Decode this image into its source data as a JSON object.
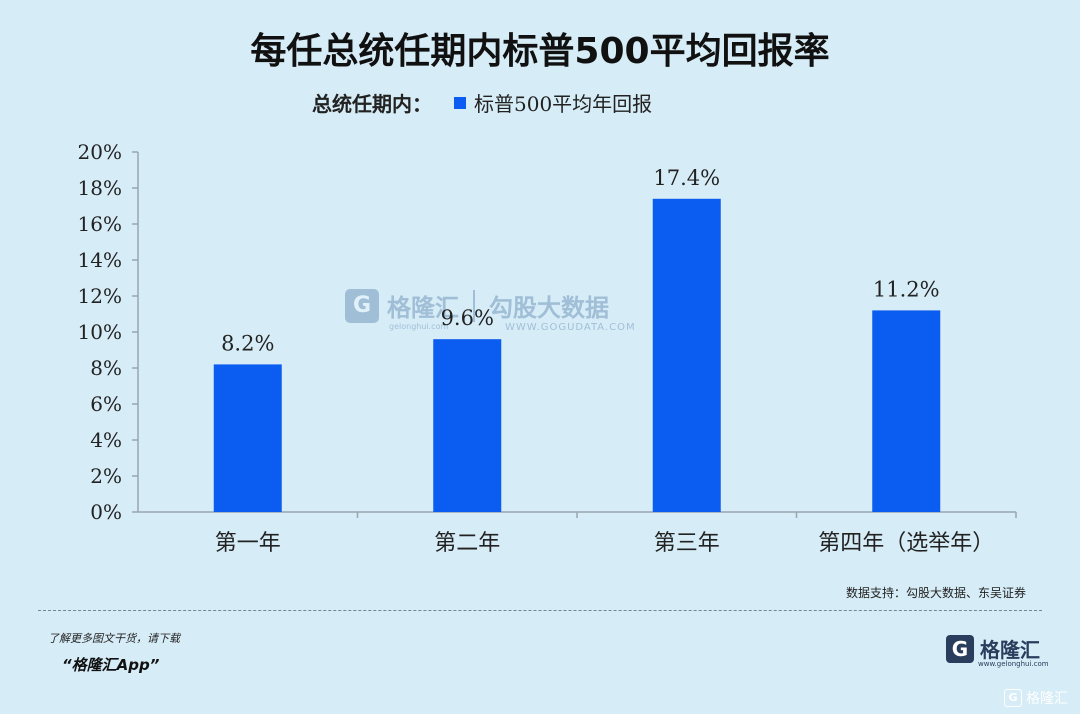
{
  "title": "每任总统任期内标普500平均回报率",
  "legend": {
    "prefix": "总统任期内：",
    "series_label": "标普500平均年回报"
  },
  "colors": {
    "background": "#d6ecf7",
    "bar": "#0b5cf0",
    "axis": "#9aa7ad",
    "text": "#222222"
  },
  "chart_data": {
    "type": "bar",
    "categories": [
      "第一年",
      "第二年",
      "第三年",
      "第四年（选举年）"
    ],
    "series": [
      {
        "name": "标普500平均年回报",
        "values": [
          8.2,
          9.6,
          17.4,
          11.2
        ]
      }
    ],
    "data_labels": [
      "8.2%",
      "9.6%",
      "17.4%",
      "11.2%"
    ],
    "ylim": [
      0,
      20
    ],
    "yticks": [
      0,
      2,
      4,
      6,
      8,
      10,
      12,
      14,
      16,
      18,
      20
    ],
    "ytick_labels": [
      "0%",
      "2%",
      "4%",
      "6%",
      "8%",
      "10%",
      "12%",
      "14%",
      "16%",
      "18%",
      "20%"
    ],
    "grid": false,
    "legend_position": "top-left"
  },
  "source": "数据支持：勾股大数据、东吴证券",
  "footer": {
    "note": "了解更多图文干货，请下载",
    "app": "“格隆汇App”"
  },
  "logo": {
    "mark": "G",
    "text": "格隆汇",
    "sub": "www.gelonghui.com"
  },
  "watermark": {
    "brand": "格隆汇",
    "brand_sub": "gelonghui.com",
    "brand2": "勾股大数据",
    "brand2_sub": "WWW.GOGUDATA.COM"
  },
  "corner_logo": {
    "mark": "G",
    "text": "格隆汇"
  }
}
